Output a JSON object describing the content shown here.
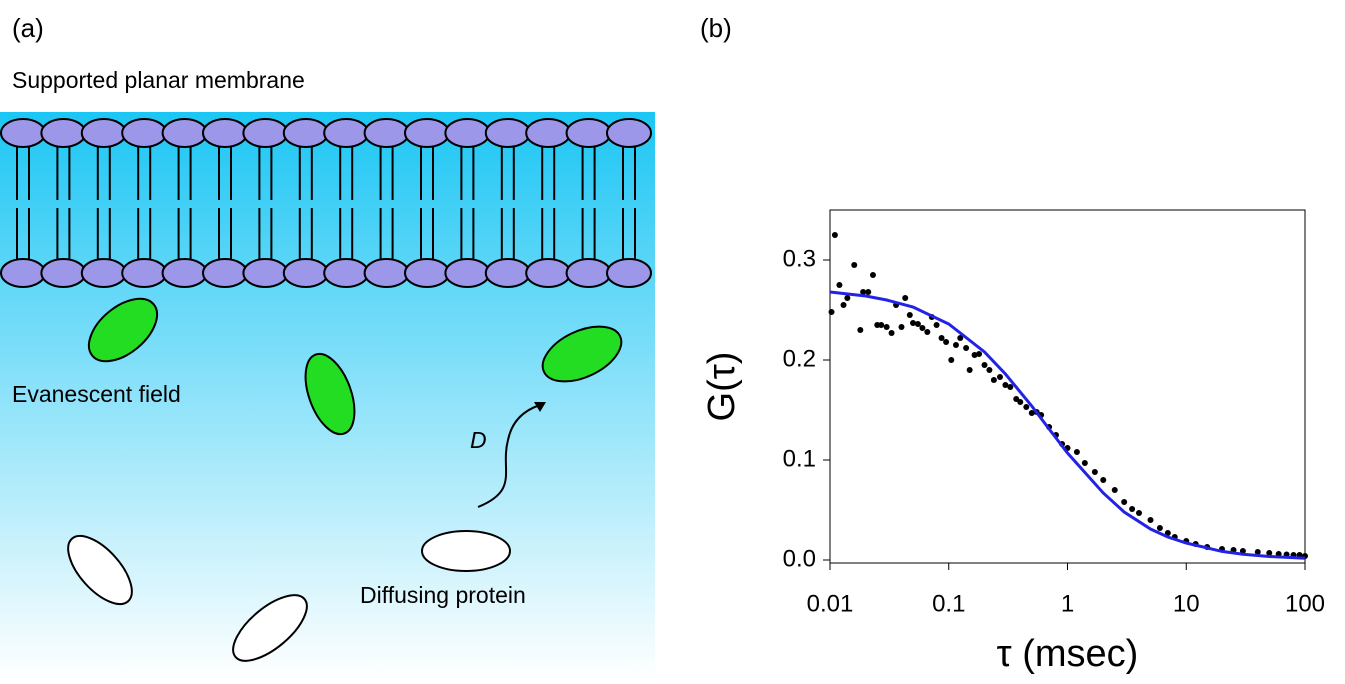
{
  "panel_labels": [
    "(a)",
    "(b)"
  ],
  "diagram": {
    "title": "Supported planar membrane",
    "evanescent_label": "Evanescent field",
    "diffusion_label": "D",
    "protein_label": "Diffusing protein"
  },
  "chart_data": {
    "type": "scatter",
    "x_label": "τ (msec)",
    "y_label": "G(τ)",
    "log_x": true,
    "xlim": [
      0.01,
      100
    ],
    "xticks": [
      0.01,
      0.1,
      1,
      10,
      100
    ],
    "ylim": [
      -0.003,
      0.35
    ],
    "yticks": [
      {
        "value": 0,
        "label": "0.0"
      },
      0.1,
      0.2,
      0.3
    ],
    "series": [
      {
        "kind": "scatter",
        "color": "#000000",
        "x": [
          0.0103,
          0.011,
          0.012,
          0.013,
          0.014,
          0.016,
          0.018,
          0.019,
          0.021,
          0.023,
          0.025,
          0.027,
          0.03,
          0.033,
          0.036,
          0.04,
          0.043,
          0.047,
          0.05,
          0.055,
          0.06,
          0.066,
          0.072,
          0.079,
          0.087,
          0.095,
          0.105,
          0.115,
          0.125,
          0.14,
          0.15,
          0.165,
          0.18,
          0.2,
          0.22,
          0.24,
          0.27,
          0.3,
          0.33,
          0.37,
          0.4,
          0.45,
          0.5,
          0.55,
          0.6,
          0.7,
          0.8,
          0.9,
          1.0,
          1.2,
          1.4,
          1.7,
          2.0,
          2.5,
          3,
          3.5,
          4,
          5,
          6,
          7,
          8,
          10,
          12,
          15,
          20,
          25,
          30,
          40,
          50,
          60,
          70,
          80,
          90,
          100
        ],
        "values": [
          0.248,
          0.325,
          0.275,
          0.255,
          0.262,
          0.295,
          0.23,
          0.268,
          0.268,
          0.285,
          0.235,
          0.235,
          0.233,
          0.227,
          0.255,
          0.233,
          0.262,
          0.245,
          0.237,
          0.236,
          0.232,
          0.228,
          0.243,
          0.235,
          0.222,
          0.218,
          0.2,
          0.215,
          0.222,
          0.212,
          0.19,
          0.205,
          0.206,
          0.195,
          0.19,
          0.18,
          0.183,
          0.175,
          0.173,
          0.161,
          0.158,
          0.153,
          0.147,
          0.148,
          0.145,
          0.133,
          0.125,
          0.116,
          0.112,
          0.108,
          0.097,
          0.088,
          0.08,
          0.07,
          0.058,
          0.051,
          0.047,
          0.04,
          0.032,
          0.027,
          0.023,
          0.019,
          0.016,
          0.013,
          0.011,
          0.01,
          0.009,
          0.008,
          0.007,
          0.006,
          0.0055,
          0.005,
          0.005,
          0.004
        ]
      },
      {
        "kind": "line",
        "color": "#2323e6",
        "x": [
          0.01,
          0.02,
          0.03,
          0.05,
          0.1,
          0.2,
          0.3,
          0.5,
          0.7,
          1,
          2,
          3,
          5,
          7,
          10,
          20,
          30,
          50,
          100
        ],
        "values": [
          0.268,
          0.264,
          0.26,
          0.253,
          0.236,
          0.208,
          0.186,
          0.154,
          0.131,
          0.107,
          0.067,
          0.048,
          0.031,
          0.023,
          0.017,
          0.0086,
          0.0058,
          0.0035,
          0.0018
        ]
      }
    ]
  }
}
